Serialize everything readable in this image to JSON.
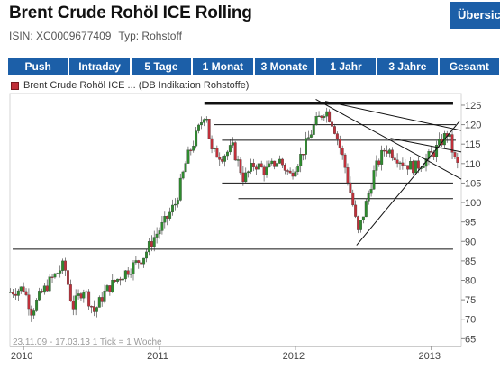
{
  "header": {
    "title": "Brent Crude Rohöl ICE Rolling",
    "overview_label": "Übersicht",
    "isin_text": "ISIN: XC0009677409",
    "type_text": "Typ: Rohstoff"
  },
  "ranges": [
    "Push",
    "Intraday",
    "5 Tage",
    "1 Monat",
    "3 Monate",
    "1 Jahr",
    "3 Jahre",
    "Gesamt"
  ],
  "legend_text": "Brent Crude Rohöl ICE ... (DB Indikation Rohstoffe)",
  "footnote": "23.11.09 - 17.03.13   1 Tick = 1 Woche",
  "colors": {
    "up": "#2e8b2e",
    "down": "#c0303a",
    "button": "#1c5fa8"
  },
  "chart_data": {
    "type": "candlestick",
    "x_ticks": [
      "2010",
      "2011",
      "2012",
      "2013"
    ],
    "y_ticks": [
      65,
      70,
      75,
      80,
      85,
      90,
      95,
      100,
      105,
      110,
      115,
      120,
      125
    ],
    "ylim": [
      63,
      128
    ],
    "xlim_years": [
      2009.9,
      2013.22
    ],
    "grid": false,
    "legend_position": "top-left",
    "weekly_close_anchors": [
      [
        2009.9,
        77
      ],
      [
        2010.0,
        78
      ],
      [
        2010.06,
        72
      ],
      [
        2010.12,
        76
      ],
      [
        2010.2,
        80
      ],
      [
        2010.3,
        84
      ],
      [
        2010.36,
        73
      ],
      [
        2010.44,
        78
      ],
      [
        2010.52,
        72
      ],
      [
        2010.6,
        77
      ],
      [
        2010.68,
        80
      ],
      [
        2010.78,
        83
      ],
      [
        2010.88,
        86
      ],
      [
        2010.96,
        91
      ],
      [
        2011.04,
        95
      ],
      [
        2011.12,
        100
      ],
      [
        2011.2,
        111
      ],
      [
        2011.28,
        118
      ],
      [
        2011.34,
        124
      ],
      [
        2011.38,
        113
      ],
      [
        2011.46,
        112
      ],
      [
        2011.54,
        114
      ],
      [
        2011.62,
        106
      ],
      [
        2011.7,
        110
      ],
      [
        2011.78,
        108
      ],
      [
        2011.88,
        111
      ],
      [
        2011.96,
        107
      ],
      [
        2012.04,
        112
      ],
      [
        2012.14,
        120
      ],
      [
        2012.22,
        124
      ],
      [
        2012.28,
        120
      ],
      [
        2012.36,
        110
      ],
      [
        2012.42,
        100
      ],
      [
        2012.46,
        92
      ],
      [
        2012.5,
        97
      ],
      [
        2012.58,
        108
      ],
      [
        2012.66,
        114
      ],
      [
        2012.74,
        112
      ],
      [
        2012.8,
        110
      ],
      [
        2012.88,
        109
      ],
      [
        2012.96,
        111
      ],
      [
        2013.02,
        113
      ],
      [
        2013.08,
        116
      ],
      [
        2013.12,
        118
      ],
      [
        2013.18,
        110
      ],
      [
        2013.21,
        109
      ]
    ],
    "horizontal_lines": [
      {
        "y": 125.5,
        "x_start": 2011.33,
        "x_end": 2013.16,
        "heavy": true
      },
      {
        "y": 120,
        "x_start": 2011.4,
        "x_end": 2013.18,
        "heavy": false
      },
      {
        "y": 116,
        "x_start": 2011.46,
        "x_end": 2013.18,
        "heavy": false
      },
      {
        "y": 105,
        "x_start": 2011.46,
        "x_end": 2013.16,
        "heavy": false
      },
      {
        "y": 101,
        "x_start": 2011.58,
        "x_end": 2013.16,
        "heavy": false
      },
      {
        "y": 88,
        "x_start": 2009.92,
        "x_end": 2013.16,
        "heavy": false
      }
    ],
    "trend_lines": [
      {
        "from": [
          2012.15,
          126.5
        ],
        "to": [
          2013.22,
          106
        ]
      },
      {
        "from": [
          2012.22,
          126.0
        ],
        "to": [
          2013.22,
          118.5
        ]
      },
      {
        "from": [
          2012.45,
          89
        ],
        "to": [
          2013.21,
          121
        ]
      },
      {
        "from": [
          2012.7,
          116.5
        ],
        "to": [
          2013.22,
          113
        ]
      }
    ]
  }
}
